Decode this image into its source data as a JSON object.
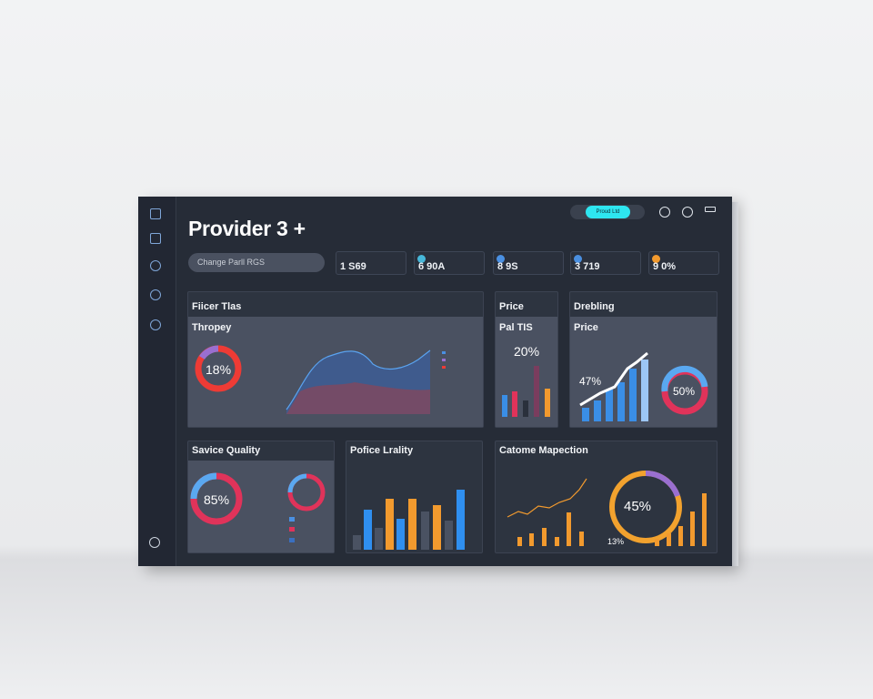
{
  "header": {
    "title": "Provider 3 +",
    "dropdown": "Change Parll RGS",
    "button": "Proud Ltd"
  },
  "stats": [
    "1 S69",
    "6 90A",
    "8 9S",
    "3 719",
    "9 0%"
  ],
  "panels": [
    {
      "title": "Fiicer Tlas",
      "subtitle": "Thropey",
      "value": "18%"
    },
    {
      "title": "Price",
      "subtitle": "Pal TIS",
      "value": "20%"
    },
    {
      "title": "Drebling",
      "subtitle": "Price",
      "value": "47%",
      "value2": "50%"
    },
    {
      "title": "Savice Quality",
      "value": "85%"
    },
    {
      "title": "Pofice Lrality"
    },
    {
      "title": "Catome Mapection",
      "value": "45%",
      "value2": "13%"
    }
  ]
}
